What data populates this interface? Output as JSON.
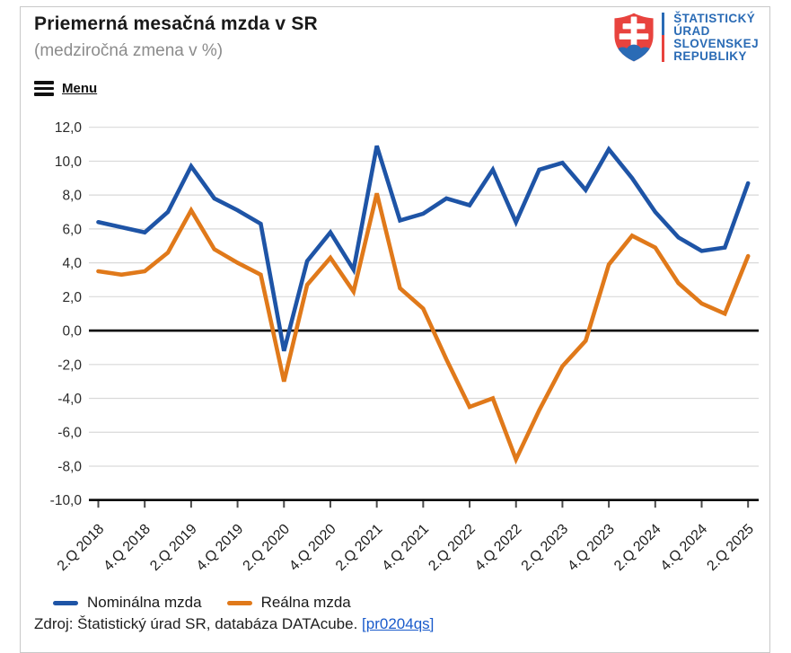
{
  "header": {
    "title": "Priemerná mesačná mzda v SR",
    "subtitle": "(medziročná zmena v %)",
    "menu_label": "Menu"
  },
  "logo": {
    "lines": [
      "ŠTATISTICKÝ",
      "ÚRAD",
      "SLOVENSKEJ",
      "REPUBLIKY"
    ],
    "text_color": "#2a6bb5",
    "shield_red": "#e8433e",
    "shield_blue": "#2a6bb5"
  },
  "chart_data": {
    "type": "line",
    "title": "Priemerná mesačná mzda v SR (medziročná zmena v %)",
    "categories": [
      "2.Q 2018",
      "3.Q 2018",
      "4.Q 2018",
      "1.Q 2019",
      "2.Q 2019",
      "3.Q 2019",
      "4.Q 2019",
      "1.Q 2020",
      "2.Q 2020",
      "3.Q 2020",
      "4.Q 2020",
      "1.Q 2021",
      "2.Q 2021",
      "3.Q 2021",
      "4.Q 2021",
      "1.Q 2022",
      "2.Q 2022",
      "3.Q 2022",
      "4.Q 2022",
      "1.Q 2023",
      "2.Q 2023",
      "3.Q 2023",
      "4.Q 2023",
      "1.Q 2024",
      "2.Q 2024",
      "3.Q 2024",
      "4.Q 2024",
      "1.Q 2025",
      "2.Q 2025"
    ],
    "x_tick_labels": [
      "2.Q 2018",
      "4.Q 2018",
      "2.Q 2019",
      "4.Q 2019",
      "2.Q 2020",
      "4.Q 2020",
      "2.Q 2021",
      "4.Q 2021",
      "2.Q 2022",
      "4.Q 2022",
      "2.Q 2023",
      "4.Q 2023",
      "2.Q 2024",
      "4.Q 2024",
      "2.Q 2025"
    ],
    "series": [
      {
        "name": "Nominálna mzda",
        "color": "#1e54a6",
        "values": [
          6.4,
          6.1,
          5.8,
          7.0,
          9.7,
          7.8,
          7.1,
          6.3,
          -1.2,
          4.1,
          5.8,
          3.6,
          10.9,
          6.5,
          6.9,
          7.8,
          7.4,
          9.5,
          6.4,
          9.5,
          9.9,
          8.3,
          10.7,
          9.0,
          7.0,
          5.5,
          4.7,
          4.9,
          8.7
        ]
      },
      {
        "name": "Reálna mzda",
        "color": "#e0791a",
        "values": [
          3.5,
          3.3,
          3.5,
          4.6,
          7.1,
          4.8,
          4.0,
          3.3,
          -3.0,
          2.7,
          4.3,
          2.3,
          8.1,
          2.5,
          1.3,
          -1.7,
          -4.5,
          -4.0,
          -7.6,
          -4.7,
          -2.1,
          -0.6,
          3.9,
          5.6,
          4.9,
          2.8,
          1.6,
          1.0,
          4.4
        ]
      }
    ],
    "ylabel": "",
    "xlabel": "",
    "ylim": [
      -10,
      12
    ],
    "ytick_step": 2,
    "y_tick_labels": [
      "12,0",
      "10,0",
      "8,0",
      "6,0",
      "4,0",
      "2,0",
      "0,0",
      "-2,0",
      "-4,0",
      "-6,0",
      "-8,0",
      "-10,0"
    ],
    "decimal_separator": ",",
    "grid": "horizontal",
    "grid_color": "#d9d9d9",
    "zero_line": true,
    "axis_color": "#000000",
    "legend_position": "bottom"
  },
  "footer": {
    "source_text": "Zdroj: Štatistický úrad SR, databáza DATAcube.",
    "link_label": "[pr0204qs]",
    "link_color": "#1a5bcb"
  }
}
